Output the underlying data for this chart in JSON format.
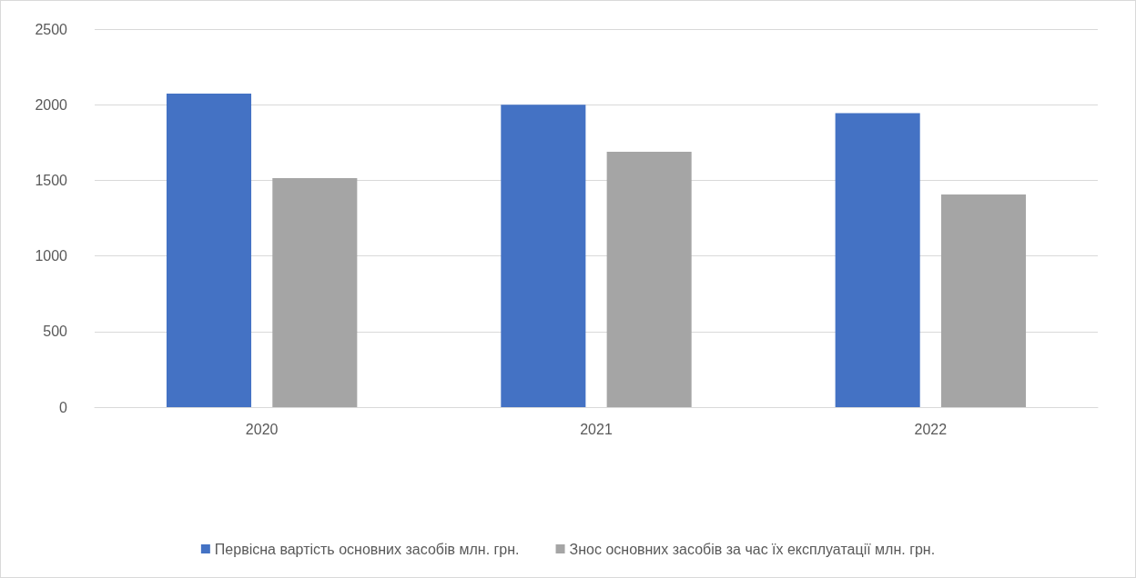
{
  "chart_data": {
    "type": "bar",
    "categories": [
      "2020",
      "2021",
      "2022"
    ],
    "series": [
      {
        "name": "Первісна вартість основних засобів млн. грн.",
        "color": "#4472c4",
        "values": [
          2073,
          2000,
          1944
        ]
      },
      {
        "name": "Знос основних засобів за час їх експлуатації млн. грн.",
        "color": "#a5a5a5",
        "values": [
          1514,
          1689,
          1407
        ]
      }
    ],
    "ylim": [
      0,
      2500
    ],
    "yticks": [
      0,
      500,
      1000,
      1500,
      2000,
      2500
    ],
    "grid": "y",
    "legend": "bottom"
  }
}
